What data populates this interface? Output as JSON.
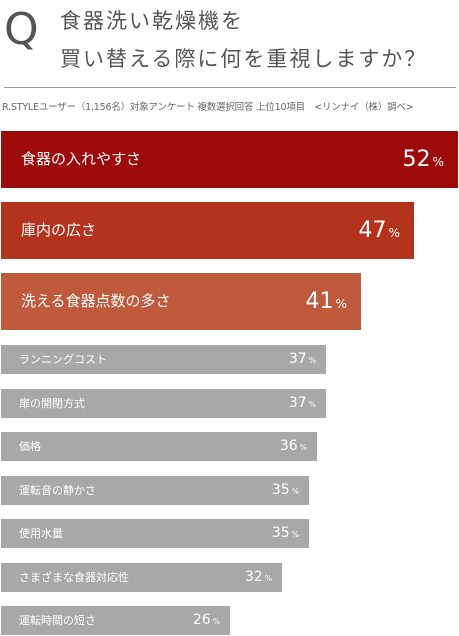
{
  "header": {
    "q_letter": "Q",
    "question_line1": "食器洗い乾燥機を",
    "question_line2": "買い替える際に何を重視しますか？",
    "note": "R.STYLEユーザー（1,156名）対象アンケート 複数選択回答 上位10項目　<リンナイ（株）調べ>"
  },
  "chart_data": {
    "type": "bar",
    "orientation": "horizontal",
    "unit": "%",
    "categories": [
      "食器の入れやすさ",
      "庫内の広さ",
      "洗える食器点数の多さ",
      "ランニングコスト",
      "扉の開閉方式",
      "価格",
      "運転音の静かさ",
      "使用水量",
      "さまざまな食器対応性",
      "運転時間の短さ"
    ],
    "values": [
      52,
      47,
      41,
      37,
      37,
      36,
      35,
      35,
      32,
      26
    ],
    "colors": [
      "#9c0a0a",
      "#b3331d",
      "#c05a3c",
      "#a8a8a8",
      "#a8a8a8",
      "#a8a8a8",
      "#a8a8a8",
      "#a8a8a8",
      "#a8a8a8",
      "#a8a8a8"
    ],
    "xlim": [
      0,
      52
    ]
  }
}
